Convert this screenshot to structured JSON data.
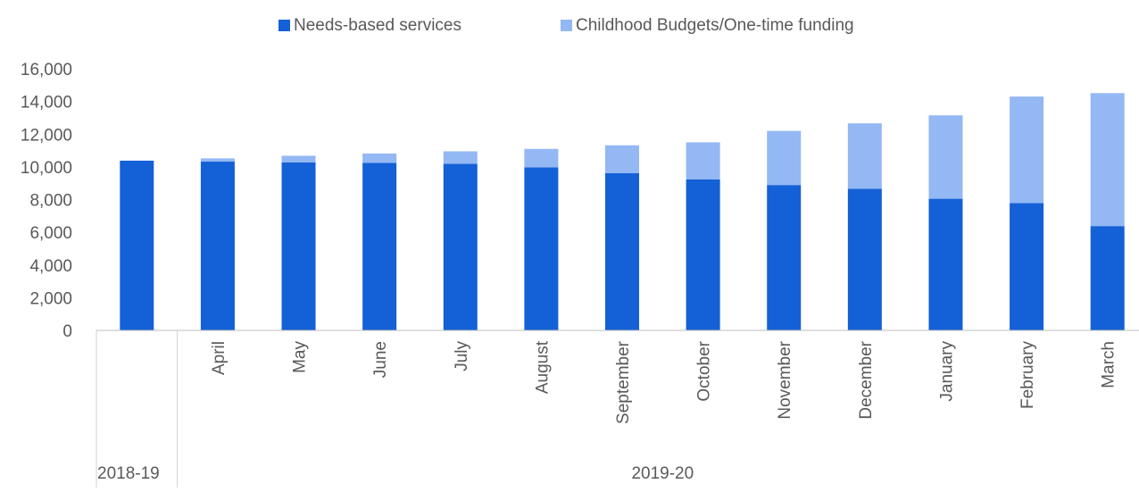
{
  "chart_data": {
    "type": "bar",
    "stacked": true,
    "categories": [
      "",
      "April",
      "May",
      "June",
      "July",
      "August",
      "September",
      "October",
      "November",
      "December",
      "January",
      "February",
      "March"
    ],
    "groups": [
      {
        "label": "2018-19",
        "start": 0,
        "end": 0
      },
      {
        "label": "2019-20",
        "start": 1,
        "end": 12
      }
    ],
    "series": [
      {
        "name": "Needs-based services",
        "color": "#1460d6",
        "values": [
          10380,
          10320,
          10280,
          10240,
          10190,
          9970,
          9620,
          9230,
          8890,
          8660,
          8050,
          7780,
          6380
        ]
      },
      {
        "name": "Childhood Budgets/One-time funding",
        "color": "#93b8f4",
        "values": [
          0,
          200,
          400,
          580,
          760,
          1130,
          1700,
          2270,
          3310,
          4000,
          5100,
          6520,
          8130
        ]
      }
    ],
    "yticks": [
      "0",
      "2,000",
      "4,000",
      "6,000",
      "8,000",
      "10,000",
      "12,000",
      "14,000",
      "16,000"
    ],
    "ylim": [
      0,
      16000
    ],
    "grid": false,
    "legend_position": "top-center",
    "xlabel": "",
    "ylabel": ""
  }
}
